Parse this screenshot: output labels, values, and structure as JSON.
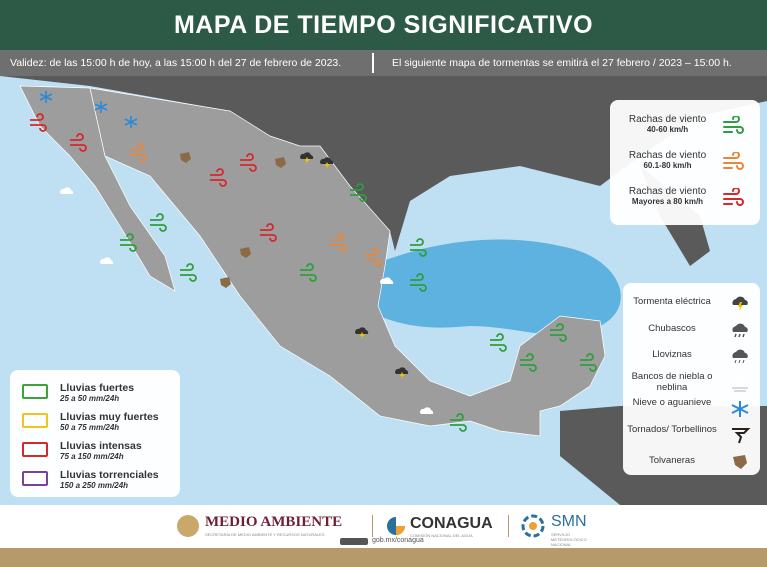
{
  "header": {
    "title": "MAPA DE TIEMPO SIGNIFICATIVO",
    "validity": "Validez: de las 15:00 h de hoy, a las 15:00 h del 27 de febrero de 2023.",
    "next_map": "El siguiente mapa de tormentas se emitirá el 27 febrero / 2023 – 15:00 h."
  },
  "wind_legend": [
    {
      "label": "Rachas de viento",
      "range": "40-60 km/h",
      "color": "#2e9e3e"
    },
    {
      "label": "Rachas de viento",
      "range": "60.1-80 km/h",
      "color": "#e8873a"
    },
    {
      "label": "Rachas de viento",
      "range": "Mayores a 80 km/h",
      "color": "#d4282d"
    }
  ],
  "weather_legend": [
    "Tormenta eléctrica",
    "Chubascos",
    "Lloviznas",
    "Bancos de niebla o neblina",
    "Nieve o aguanieve",
    "Tornados/ Torbellinos",
    "Tolvaneras"
  ],
  "rain_legend": [
    {
      "label": "Lluvias fuertes",
      "range": "25 a 50 mm/24h",
      "color": "#3aa33a"
    },
    {
      "label": "Lluvias muy fuertes",
      "range": "50 a 75 mm/24h",
      "color": "#f0c419"
    },
    {
      "label": "Lluvias intensas",
      "range": "75 a 150 mm/24h",
      "color": "#d4282d"
    },
    {
      "label": "Lluvias torrenciales",
      "range": "150 a 250 mm/24h",
      "color": "#7b3fa0"
    }
  ],
  "footer": {
    "semarnat": "MEDIO AMBIENTE",
    "semarnat_sub": "SECRETARÍA DE MEDIO AMBIENTE Y RECURSOS NATURALES",
    "conagua": "CONAGUA",
    "conagua_sub": "COMISIÓN NACIONAL DEL AGUA",
    "smn": "SMN",
    "smn_sub": "SERVICIO METEOROLÓGICO NACIONAL",
    "url": "gob.mx/conagua"
  }
}
